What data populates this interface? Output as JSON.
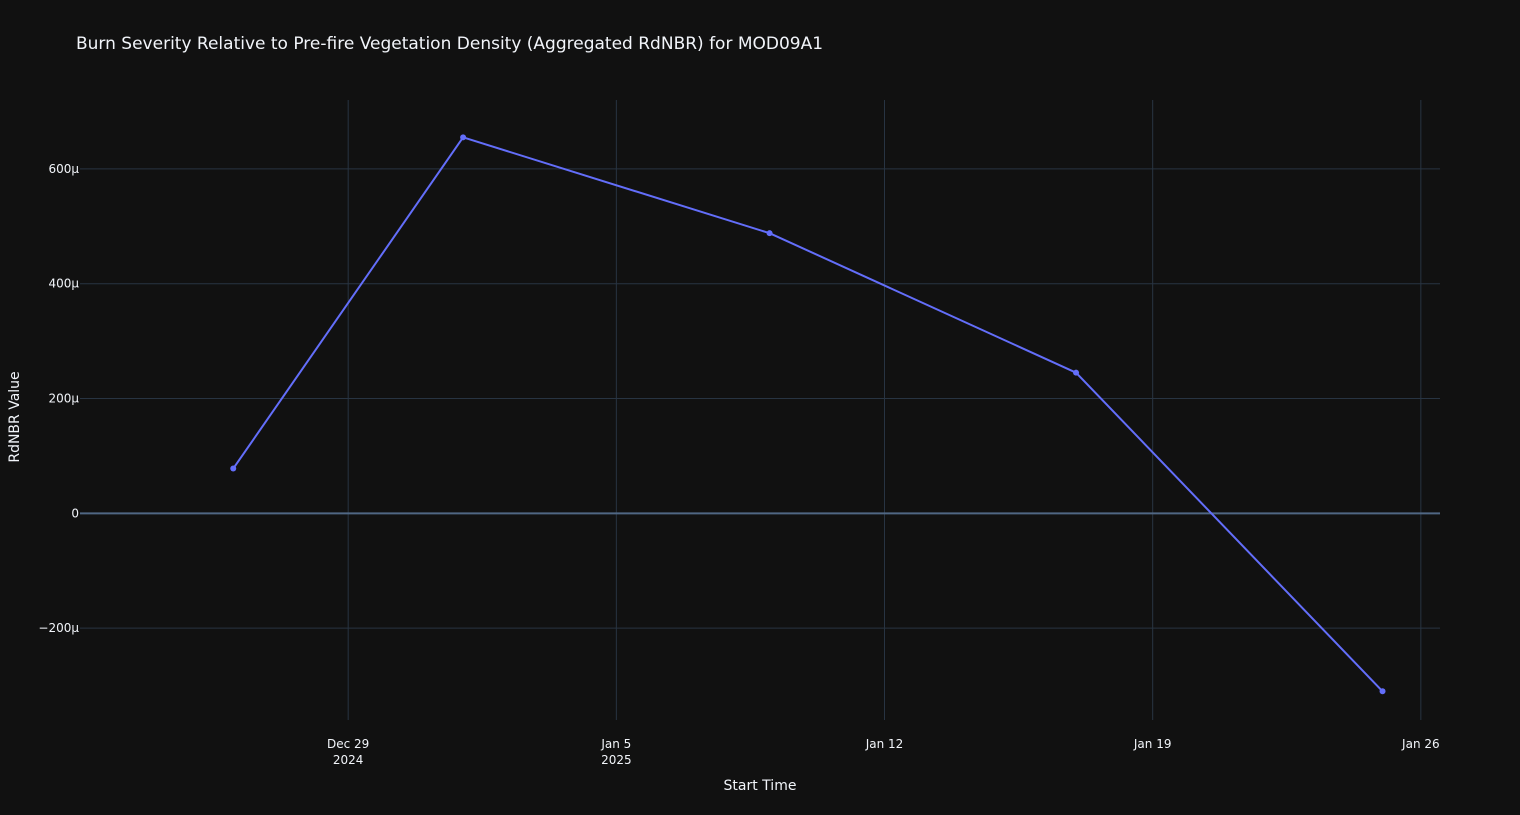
{
  "chart_data": {
    "type": "line",
    "title": "Burn Severity Relative to Pre-fire Vegetation Density (Aggregated RdNBR) for MOD09A1",
    "xlabel": "Start Time",
    "ylabel": "RdNBR Value",
    "x_type": "date",
    "xlim": [
      "2024-12-22T00:00",
      "2025-01-26T12:00"
    ],
    "ylim": [
      -0.00036,
      0.00072
    ],
    "x_ticks": [
      {
        "date": "2024-12-29",
        "label": "Dec 29",
        "sublabel": "2024"
      },
      {
        "date": "2025-01-05",
        "label": "Jan 5",
        "sublabel": "2025"
      },
      {
        "date": "2025-01-12",
        "label": "Jan 12",
        "sublabel": ""
      },
      {
        "date": "2025-01-19",
        "label": "Jan 19",
        "sublabel": ""
      },
      {
        "date": "2025-01-26",
        "label": "Jan 26",
        "sublabel": ""
      }
    ],
    "y_ticks": [
      {
        "value": -0.0002,
        "label": "−200µ"
      },
      {
        "value": 0,
        "label": "0"
      },
      {
        "value": 0.0002,
        "label": "200µ"
      },
      {
        "value": 0.0004,
        "label": "400µ"
      },
      {
        "value": 0.0006,
        "label": "600µ"
      }
    ],
    "grid": true,
    "series": [
      {
        "color": "#636efa",
        "points": [
          {
            "x": "2024-12-26",
            "y": 7.8e-05
          },
          {
            "x": "2025-01-01",
            "y": 0.000655
          },
          {
            "x": "2025-01-09",
            "y": 0.000488
          },
          {
            "x": "2025-01-17",
            "y": 0.000245
          },
          {
            "x": "2025-01-25",
            "y": -0.00031
          }
        ]
      }
    ]
  }
}
